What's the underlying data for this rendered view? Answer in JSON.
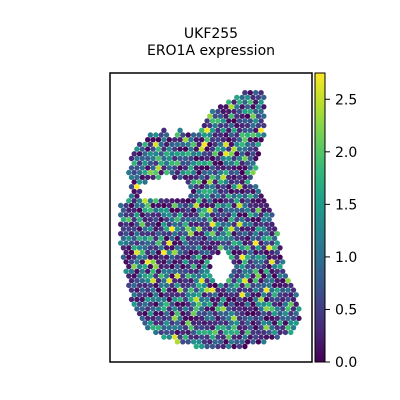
{
  "chart_data": {
    "type": "scatter",
    "title": "UKF255",
    "subtitle": "ERO1A expression",
    "xlabel": "",
    "ylabel": "",
    "grid": false,
    "axes_ticks": false,
    "colorbar": {
      "label": "",
      "colormap": "viridis",
      "range": [
        0.0,
        2.75
      ],
      "ticks": [
        0.0,
        0.5,
        1.0,
        1.5,
        2.0,
        2.5
      ],
      "tick_labels": [
        "0.0",
        "0.5",
        "1.0",
        "1.5",
        "2.0",
        "2.5"
      ],
      "colormap_stops": [
        "#440154",
        "#482878",
        "#3e4989",
        "#31688e",
        "#26828e",
        "#1f9e89",
        "#35b779",
        "#6ece58",
        "#b5de2b",
        "#fde725"
      ]
    },
    "value_summary": {
      "min": 0.0,
      "max": 2.75,
      "typical": "mostly 0.0-1.0 with scattered 1.5-2.5"
    }
  }
}
